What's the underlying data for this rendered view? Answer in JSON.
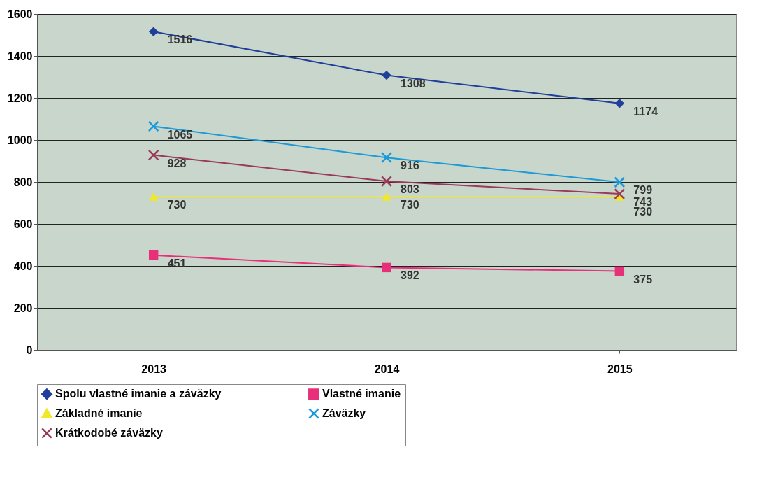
{
  "chart_data": {
    "type": "line",
    "categories": [
      "2013",
      "2014",
      "2015"
    ],
    "ylim": [
      0,
      1600
    ],
    "yticks": [
      0,
      200,
      400,
      600,
      800,
      1000,
      1200,
      1400,
      1600
    ],
    "grid": "y",
    "legend": "bottom",
    "data_labels": true,
    "line_style": "solid",
    "series": [
      {
        "name": "Spolu vlastné imanie a záväzky",
        "color": "#1f3f9a",
        "marker": "diamond",
        "values": [
          1516,
          1308,
          1174
        ]
      },
      {
        "name": "Vlastné imanie",
        "color": "#e8307a",
        "marker": "square",
        "values": [
          451,
          392,
          375
        ]
      },
      {
        "name": "Základné imanie",
        "color": "#f0e828",
        "marker": "triangle",
        "values": [
          730,
          730,
          730
        ]
      },
      {
        "name": "Záväzky",
        "color": "#1a9ad8",
        "marker": "cross",
        "values": [
          1065,
          916,
          799
        ]
      },
      {
        "name": "Krátkodobé záväzky",
        "color": "#9a3a5a",
        "marker": "cross",
        "values": [
          928,
          803,
          743
        ]
      }
    ]
  }
}
